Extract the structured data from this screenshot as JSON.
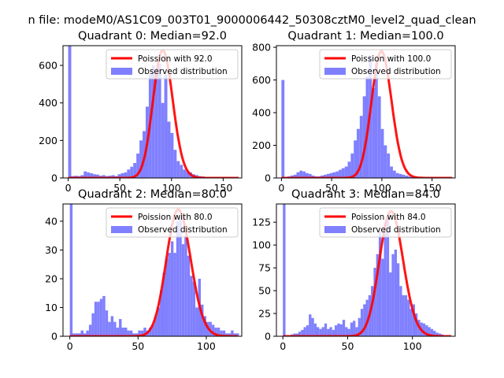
{
  "figure": {
    "suptitle": "n file: modeM0/AS1C09_003T01_9000006442_50308cztM0_level2_quad_clean"
  },
  "chart_data": [
    {
      "type": "bar",
      "title": "Quadrant 0: Median=92.0",
      "xlim": [
        -5,
        168
      ],
      "ylim": [
        0,
        705
      ],
      "xticks": [
        0,
        50,
        100,
        150
      ],
      "yticks": [
        0,
        200,
        400,
        600
      ],
      "bin_width": 3,
      "hist_x": [
        0,
        3,
        6,
        9,
        12,
        15,
        18,
        21,
        24,
        27,
        30,
        33,
        36,
        39,
        42,
        45,
        48,
        51,
        54,
        57,
        60,
        63,
        66,
        69,
        72,
        75,
        78,
        81,
        84,
        87,
        90,
        93,
        96,
        99,
        102,
        105,
        108,
        111,
        114,
        117,
        120,
        123,
        126,
        129,
        132,
        135,
        138,
        141,
        144,
        147,
        150,
        153,
        156,
        159,
        162
      ],
      "hist_y": [
        705,
        10,
        12,
        10,
        15,
        35,
        30,
        25,
        20,
        18,
        12,
        15,
        10,
        12,
        15,
        10,
        20,
        25,
        30,
        45,
        60,
        80,
        130,
        200,
        250,
        380,
        550,
        600,
        550,
        610,
        400,
        550,
        300,
        240,
        150,
        90,
        70,
        45,
        35,
        30,
        20,
        15,
        10,
        8,
        5,
        3,
        2,
        0,
        0,
        0,
        0,
        0,
        0,
        0,
        0
      ],
      "poisson_label": "Poission with 92.0",
      "observed_label": "Observed distribution",
      "lambda": 92.0,
      "peak": 680,
      "series": [
        {
          "name": "Poission with 92.0",
          "kind": "line",
          "color": "#ff0000"
        },
        {
          "name": "Observed distribution",
          "kind": "bar",
          "color": "#8080ff"
        }
      ]
    },
    {
      "type": "bar",
      "title": "Quadrant 1: Median=100.0",
      "xlim": [
        -5,
        173
      ],
      "ylim": [
        0,
        810
      ],
      "xticks": [
        0,
        50,
        100,
        150
      ],
      "yticks": [
        0,
        200,
        400,
        600,
        800
      ],
      "bin_width": 3,
      "hist_x": [
        0,
        3,
        6,
        9,
        12,
        15,
        18,
        21,
        24,
        27,
        30,
        33,
        36,
        39,
        42,
        45,
        48,
        51,
        54,
        57,
        60,
        63,
        66,
        69,
        72,
        75,
        78,
        81,
        84,
        87,
        90,
        93,
        96,
        99,
        102,
        105,
        108,
        111,
        114,
        117,
        120,
        123,
        126,
        129,
        132,
        135,
        138,
        141,
        144,
        147,
        150,
        153,
        156,
        159,
        162,
        165,
        168
      ],
      "hist_y": [
        600,
        5,
        10,
        15,
        20,
        35,
        45,
        40,
        30,
        25,
        15,
        10,
        10,
        15,
        20,
        25,
        30,
        35,
        40,
        50,
        60,
        70,
        100,
        150,
        230,
        300,
        380,
        500,
        620,
        750,
        550,
        700,
        500,
        300,
        200,
        150,
        70,
        45,
        30,
        25,
        20,
        15,
        10,
        5,
        3,
        2,
        0,
        0,
        0,
        0,
        0,
        0,
        0,
        0,
        0,
        0,
        0
      ],
      "poisson_label": "Poission with 100.0",
      "observed_label": "Observed distribution",
      "lambda": 100.0,
      "peak": 775,
      "series": [
        {
          "name": "Poission with 100.0",
          "kind": "line",
          "color": "#ff0000"
        },
        {
          "name": "Observed distribution",
          "kind": "bar",
          "color": "#8080ff"
        }
      ]
    },
    {
      "type": "bar",
      "title": "Quadrant 2: Median=80.0",
      "xlim": [
        -5,
        126
      ],
      "ylim": [
        0,
        46
      ],
      "xticks": [
        0,
        50,
        100
      ],
      "yticks": [
        0,
        10,
        20,
        30,
        40
      ],
      "bin_width": 2,
      "hist_x": [
        0,
        2,
        4,
        6,
        8,
        10,
        12,
        14,
        16,
        18,
        20,
        22,
        24,
        26,
        28,
        30,
        32,
        34,
        36,
        38,
        40,
        42,
        44,
        46,
        48,
        50,
        52,
        54,
        56,
        58,
        60,
        62,
        64,
        66,
        68,
        70,
        72,
        74,
        76,
        78,
        80,
        82,
        84,
        86,
        88,
        90,
        92,
        94,
        96,
        98,
        100,
        102,
        104,
        106,
        108,
        110,
        112,
        114,
        116,
        118,
        120,
        122
      ],
      "hist_y": [
        46,
        1,
        1,
        1,
        2,
        1,
        2,
        4,
        8,
        12,
        12,
        13,
        14,
        9,
        5,
        7,
        5,
        3,
        6,
        3,
        3,
        2,
        2,
        1,
        1,
        2,
        2,
        3,
        2,
        3,
        4,
        7,
        10,
        16,
        22,
        27,
        29,
        33,
        29,
        40,
        42,
        32,
        35,
        28,
        21,
        19,
        10,
        20,
        11,
        7,
        5,
        5,
        4,
        3,
        3,
        2,
        2,
        1,
        1,
        2,
        1,
        1
      ],
      "poisson_label": "Poission with 80.0",
      "observed_label": "Observed distribution",
      "lambda": 80.0,
      "peak": 44,
      "series": [
        {
          "name": "Poission with 80.0",
          "kind": "line",
          "color": "#ff0000"
        },
        {
          "name": "Observed distribution",
          "kind": "bar",
          "color": "#8080ff"
        }
      ]
    },
    {
      "type": "bar",
      "title": "Quadrant 3: Median=84.0",
      "xlim": [
        -5,
        133
      ],
      "ylim": [
        0,
        145
      ],
      "xticks": [
        0,
        50,
        100
      ],
      "yticks": [
        0,
        25,
        50,
        75,
        100,
        125
      ],
      "bin_width": 2,
      "hist_x": [
        0,
        2,
        4,
        6,
        8,
        10,
        12,
        14,
        16,
        18,
        20,
        22,
        24,
        26,
        28,
        30,
        32,
        34,
        36,
        38,
        40,
        42,
        44,
        46,
        48,
        50,
        52,
        54,
        56,
        58,
        60,
        62,
        64,
        66,
        68,
        70,
        72,
        74,
        76,
        78,
        80,
        82,
        84,
        86,
        88,
        90,
        92,
        94,
        96,
        98,
        100,
        102,
        104,
        106,
        108,
        110,
        112,
        114,
        116,
        118,
        120,
        122,
        124,
        126,
        128
      ],
      "hist_y": [
        145,
        1,
        1,
        2,
        3,
        3,
        5,
        7,
        10,
        12,
        24,
        20,
        14,
        10,
        8,
        10,
        14,
        8,
        10,
        7,
        12,
        14,
        13,
        18,
        10,
        8,
        15,
        17,
        10,
        20,
        30,
        35,
        40,
        45,
        55,
        75,
        90,
        115,
        85,
        125,
        130,
        70,
        90,
        95,
        80,
        55,
        45,
        45,
        40,
        30,
        35,
        25,
        18,
        15,
        14,
        12,
        10,
        8,
        6,
        4,
        3,
        2,
        1,
        1,
        0
      ],
      "poisson_label": "Poission with 84.0",
      "observed_label": "Observed distribution",
      "lambda": 84.0,
      "peak": 137,
      "series": [
        {
          "name": "Poission with 84.0",
          "kind": "line",
          "color": "#ff0000"
        },
        {
          "name": "Observed distribution",
          "kind": "bar",
          "color": "#8080ff"
        }
      ]
    }
  ]
}
